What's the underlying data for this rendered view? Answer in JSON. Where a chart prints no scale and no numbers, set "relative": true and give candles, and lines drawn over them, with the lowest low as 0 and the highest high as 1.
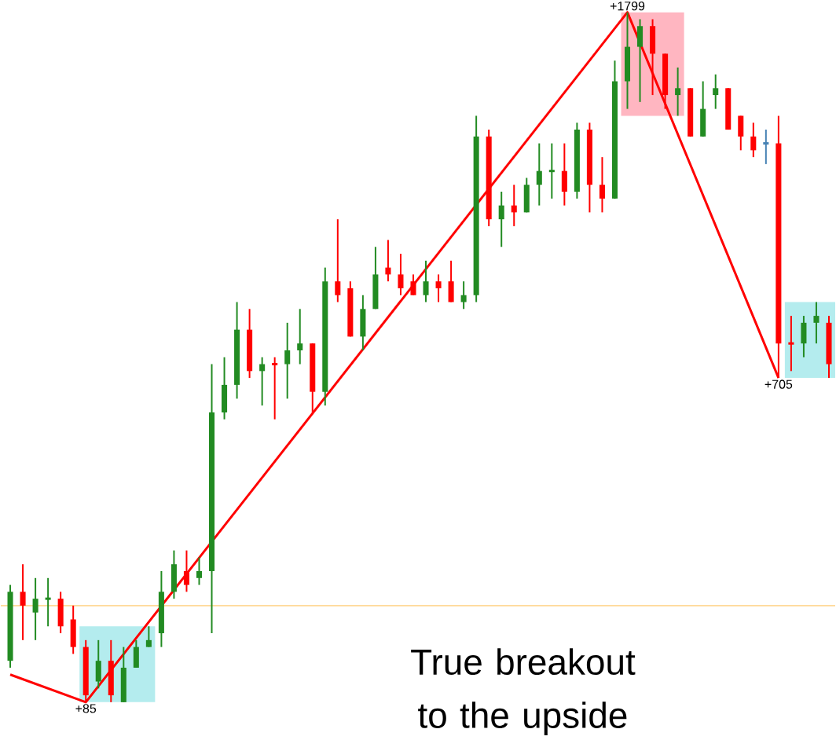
{
  "chart_data": {
    "type": "candlestick",
    "relative": true,
    "categories": [
      null,
      null,
      null,
      null,
      null,
      null,
      null,
      null,
      null,
      null,
      null,
      null,
      null,
      null,
      null,
      null,
      null,
      null,
      null,
      null,
      null,
      null,
      null,
      null,
      null,
      null,
      null,
      null,
      null,
      null,
      null,
      null,
      null,
      null,
      null,
      null,
      null,
      null,
      null,
      null,
      null,
      null,
      null,
      null,
      null,
      null,
      null,
      null,
      null,
      null,
      null,
      null,
      null,
      null,
      null,
      null,
      null,
      null,
      null,
      null,
      null,
      null,
      null,
      null,
      null,
      null
    ],
    "series": [
      {
        "ohlc": [
          [
            0.06,
            0.17,
            0.05,
            0.16
          ],
          [
            0.16,
            0.2,
            0.09,
            0.14
          ],
          [
            0.13,
            0.18,
            0.09,
            0.15
          ],
          [
            0.15,
            0.18,
            0.11,
            0.15
          ],
          [
            0.15,
            0.16,
            0.1,
            0.11
          ],
          [
            0.12,
            0.14,
            0.07,
            0.08
          ],
          [
            0.08,
            0.09,
            0.0,
            0.01
          ],
          [
            0.03,
            0.09,
            0.02,
            0.06
          ],
          [
            0.06,
            0.09,
            0.0,
            0.01
          ],
          [
            0.0,
            0.08,
            0.0,
            0.05
          ],
          [
            0.05,
            0.09,
            0.05,
            0.08
          ],
          [
            0.08,
            0.11,
            0.08,
            0.09
          ],
          [
            0.1,
            0.19,
            0.08,
            0.16
          ],
          [
            0.16,
            0.22,
            0.15,
            0.2
          ],
          [
            0.19,
            0.22,
            0.16,
            0.17
          ],
          [
            0.18,
            0.21,
            0.17,
            0.19
          ],
          [
            0.19,
            0.49,
            0.1,
            0.42
          ],
          [
            0.42,
            0.5,
            0.41,
            0.46
          ],
          [
            0.46,
            0.58,
            0.44,
            0.54
          ],
          [
            0.54,
            0.57,
            0.47,
            0.48
          ],
          [
            0.48,
            0.5,
            0.43,
            0.49
          ],
          [
            0.49,
            0.5,
            0.41,
            0.49
          ],
          [
            0.49,
            0.55,
            0.44,
            0.51
          ],
          [
            0.51,
            0.57,
            0.49,
            0.52
          ],
          [
            0.52,
            0.52,
            0.42,
            0.45
          ],
          [
            0.45,
            0.63,
            0.43,
            0.61
          ],
          [
            0.61,
            0.7,
            0.58,
            0.59
          ],
          [
            0.6,
            0.61,
            0.53,
            0.53
          ],
          [
            0.53,
            0.59,
            0.51,
            0.57
          ],
          [
            0.57,
            0.66,
            0.57,
            0.62
          ],
          [
            0.63,
            0.67,
            0.61,
            0.62
          ],
          [
            0.62,
            0.65,
            0.59,
            0.6
          ],
          [
            0.61,
            0.62,
            0.59,
            0.59
          ],
          [
            0.59,
            0.64,
            0.58,
            0.61
          ],
          [
            0.61,
            0.62,
            0.58,
            0.6
          ],
          [
            0.61,
            0.64,
            0.58,
            0.58
          ],
          [
            0.58,
            0.61,
            0.57,
            0.59
          ],
          [
            0.59,
            0.85,
            0.58,
            0.82
          ],
          [
            0.82,
            0.83,
            0.69,
            0.7
          ],
          [
            0.7,
            0.74,
            0.66,
            0.72
          ],
          [
            0.72,
            0.75,
            0.69,
            0.71
          ],
          [
            0.71,
            0.76,
            0.71,
            0.75
          ],
          [
            0.75,
            0.81,
            0.72,
            0.77
          ],
          [
            0.77,
            0.81,
            0.73,
            0.77
          ],
          [
            0.77,
            0.81,
            0.72,
            0.74
          ],
          [
            0.74,
            0.84,
            0.73,
            0.83
          ],
          [
            0.83,
            0.84,
            0.71,
            0.75
          ],
          [
            0.75,
            0.79,
            0.71,
            0.73
          ],
          [
            0.73,
            0.93,
            0.73,
            0.9
          ],
          [
            0.9,
            1.0,
            0.86,
            0.95
          ],
          [
            0.95,
            0.99,
            0.87,
            0.98
          ],
          [
            0.98,
            0.99,
            0.88,
            0.94
          ],
          [
            0.94,
            0.94,
            0.86,
            0.88
          ],
          [
            0.88,
            0.92,
            0.85,
            0.89
          ],
          [
            0.89,
            0.89,
            0.82,
            0.82
          ],
          [
            0.82,
            0.9,
            0.82,
            0.86
          ],
          [
            0.88,
            0.91,
            0.86,
            0.89
          ],
          [
            0.89,
            0.89,
            0.83,
            0.83
          ],
          [
            0.85,
            0.85,
            0.8,
            0.82
          ],
          [
            0.82,
            0.84,
            0.79,
            0.8
          ],
          [
            0.81,
            0.83,
            0.78,
            0.81
          ],
          [
            0.81,
            0.85,
            0.47,
            0.52
          ],
          [
            0.52,
            0.56,
            0.48,
            0.52
          ],
          [
            0.52,
            0.56,
            0.5,
            0.55
          ],
          [
            0.55,
            0.58,
            0.52,
            0.56
          ],
          [
            0.55,
            0.56,
            0.47,
            0.49
          ]
        ],
        "colors": [
          "#228b22",
          "#ff0000",
          "#228b22",
          "#228b22",
          "#ff0000",
          "#ff0000",
          "#ff0000",
          "#228b22",
          "#ff0000",
          "#228b22",
          "#228b22",
          "#228b22",
          "#228b22",
          "#228b22",
          "#ff0000",
          "#228b22",
          "#228b22",
          "#228b22",
          "#228b22",
          "#ff0000",
          "#228b22",
          "#ff0000",
          "#228b22",
          "#228b22",
          "#ff0000",
          "#228b22",
          "#ff0000",
          "#ff0000",
          "#228b22",
          "#228b22",
          "#ff0000",
          "#ff0000",
          "#ff0000",
          "#228b22",
          "#ff0000",
          "#ff0000",
          "#228b22",
          "#228b22",
          "#ff0000",
          "#228b22",
          "#ff0000",
          "#228b22",
          "#228b22",
          "#228b22",
          "#ff0000",
          "#228b22",
          "#ff0000",
          "#ff0000",
          "#228b22",
          "#228b22",
          "#228b22",
          "#ff0000",
          "#ff0000",
          "#228b22",
          "#ff0000",
          "#228b22",
          "#228b22",
          "#ff0000",
          "#ff0000",
          "#ff0000",
          "#4682b4",
          "#ff0000",
          "#ff0000",
          "#228b22",
          "#228b22",
          "#ff0000"
        ]
      },
      {
        "type": "line",
        "color": "#ff0000",
        "values": [
          0.04,
          null,
          null,
          null,
          null,
          null,
          0,
          null,
          null,
          null,
          null,
          null,
          null,
          null,
          null,
          null,
          null,
          null,
          null,
          null,
          null,
          null,
          null,
          null,
          null,
          null,
          null,
          null,
          null,
          null,
          null,
          null,
          null,
          null,
          null,
          null,
          null,
          null,
          null,
          null,
          null,
          null,
          null,
          null,
          null,
          null,
          null,
          null,
          null,
          1,
          null,
          null,
          null,
          null,
          null,
          null,
          null,
          null,
          null,
          null,
          null,
          0.47,
          null,
          null,
          null,
          null
        ]
      }
    ],
    "ref_lines": [
      {
        "axis": "y",
        "value": 0.14,
        "color": "#ffdca0"
      }
    ],
    "annotations": [
      {
        "text": "+85",
        "y": 0
      },
      {
        "text": "+1799",
        "y": 1
      },
      {
        "text": "+705",
        "y": 0.47
      },
      "True breakout to the upside"
    ]
  }
}
